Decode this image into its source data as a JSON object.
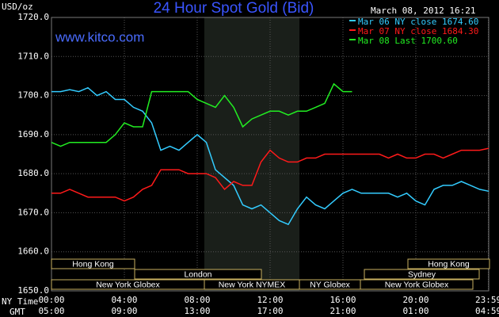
{
  "chart_data": {
    "type": "line",
    "title": "24 Hour Spot Gold (Bid)",
    "timestamp": "March 08, 2012 16:21",
    "site": "www.kitco.com",
    "y_label": "USD/oz",
    "x_row_label": "NY Time",
    "x2_row_label": "GMT",
    "x": [
      0,
      0.5,
      1,
      1.5,
      2,
      2.5,
      3,
      3.5,
      4,
      4.5,
      5,
      5.5,
      6,
      6.5,
      7,
      7.5,
      8,
      8.5,
      9,
      9.5,
      10,
      10.5,
      11,
      11.5,
      12,
      12.5,
      13,
      13.5,
      14,
      14.5,
      15,
      15.5,
      16,
      16.5,
      17,
      17.5,
      18,
      18.5,
      19,
      19.5,
      20,
      20.5,
      21,
      21.5,
      22,
      22.5,
      23,
      23.5,
      24
    ],
    "series": [
      {
        "name": "Mar 06 NY close 1674.60",
        "color": "#33ccff",
        "values": [
          1701,
          1701,
          1701.5,
          1701,
          1702,
          1700,
          1701,
          1699,
          1699,
          1697,
          1696,
          1693,
          1686,
          1687,
          1686,
          1688,
          1690,
          1688,
          1681,
          1679,
          1677,
          1672,
          1671,
          1672,
          1670,
          1668,
          1667,
          1671,
          1674,
          1672,
          1671,
          1673,
          1675,
          1676,
          1675,
          1675,
          1675,
          1675,
          1674,
          1675,
          1673,
          1672,
          1676,
          1677,
          1677,
          1678,
          1677,
          1676,
          1675.5
        ]
      },
      {
        "name": "Mar 07 NY close 1684.30",
        "color": "#ff1a1a",
        "values": [
          1675,
          1675,
          1676,
          1675,
          1674,
          1674,
          1674,
          1674,
          1673,
          1674,
          1676,
          1677,
          1681,
          1681,
          1681,
          1680,
          1680,
          1680,
          1679,
          1676,
          1678,
          1677,
          1677,
          1683,
          1686,
          1684,
          1683,
          1683,
          1684,
          1684,
          1685,
          1685,
          1685,
          1685,
          1685,
          1685,
          1685,
          1684,
          1685,
          1684,
          1684,
          1685,
          1685,
          1684,
          1685,
          1686,
          1686,
          1686,
          1686.5
        ]
      },
      {
        "name": "Mar 08 Last 1700.60",
        "color": "#22ee22",
        "values": [
          1688,
          1687,
          1688,
          1688,
          1688,
          1688,
          1688,
          1690,
          1693,
          1692,
          1692,
          1701,
          1701,
          1701,
          1701,
          1701,
          1699,
          1698,
          1697,
          1700,
          1697,
          1692,
          1694,
          1695,
          1696,
          1696,
          1695,
          1696,
          1696,
          1697,
          1698,
          1703,
          1701,
          1701,
          null,
          null,
          null,
          null,
          null,
          null,
          null,
          null,
          null,
          null,
          null,
          null,
          null,
          null,
          null
        ]
      }
    ],
    "xlim": [
      0,
      24
    ],
    "xticks": [
      {
        "value": 0,
        "label": "00:00"
      },
      {
        "value": 4,
        "label": "04:00"
      },
      {
        "value": 8,
        "label": "08:00"
      },
      {
        "value": 12,
        "label": "12:00"
      },
      {
        "value": 16,
        "label": "16:00"
      },
      {
        "value": 20,
        "label": "20:00"
      },
      {
        "value": 23.98,
        "label": "23:59"
      }
    ],
    "x2ticks": [
      {
        "value": 0,
        "label": "05:00"
      },
      {
        "value": 4,
        "label": "09:00"
      },
      {
        "value": 8,
        "label": "13:00"
      },
      {
        "value": 12,
        "label": "17:00"
      },
      {
        "value": 16,
        "label": "21:00"
      },
      {
        "value": 20,
        "label": "01:00"
      },
      {
        "value": 23.98,
        "label": "04:59"
      }
    ],
    "ylim": [
      1650,
      1720
    ],
    "yticks": [
      {
        "value": 1650,
        "label": "1650.0"
      },
      {
        "value": 1660,
        "label": "1660.0"
      },
      {
        "value": 1670,
        "label": "1670.0"
      },
      {
        "value": 1680,
        "label": "1680.0"
      },
      {
        "value": 1690,
        "label": "1690.0"
      },
      {
        "value": 1700,
        "label": "1700.0"
      },
      {
        "value": 1710,
        "label": "1710.0"
      },
      {
        "value": 1720,
        "label": "1720.0"
      }
    ],
    "grid": true,
    "sessions": [
      "Hong Kong",
      "Hong Kong",
      "London",
      "Sydney",
      "New York Globex",
      "New York NYMEX",
      "NY Globex",
      "New York Globex"
    ]
  }
}
